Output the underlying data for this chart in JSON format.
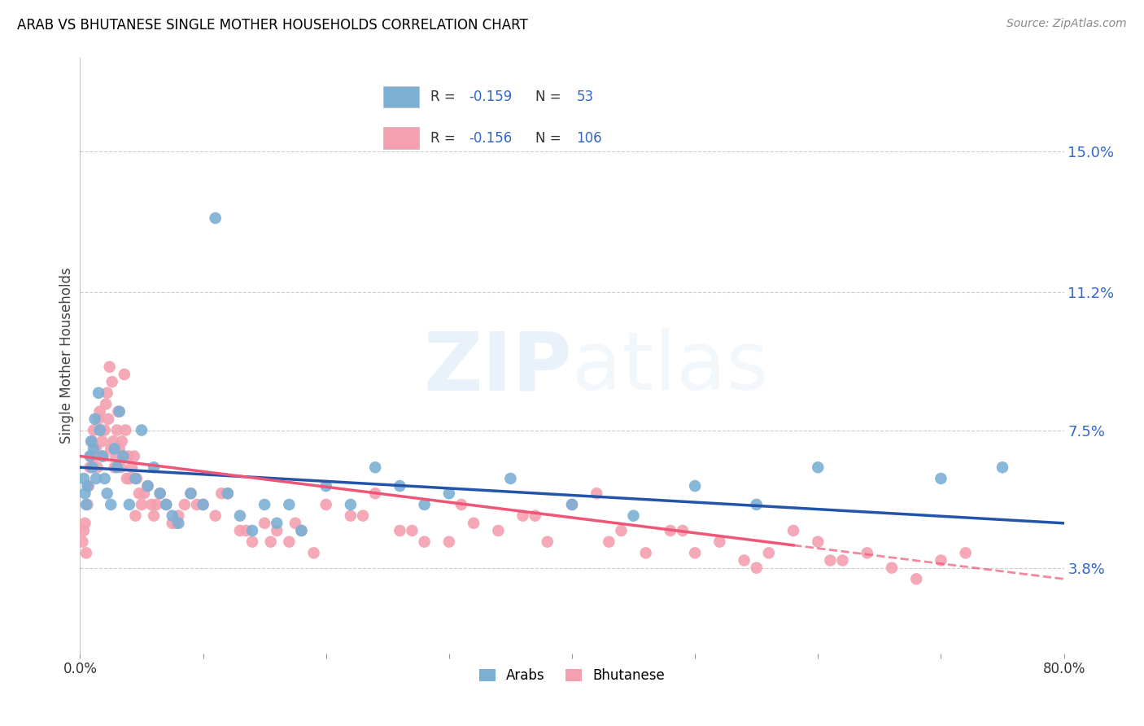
{
  "title": "ARAB VS BHUTANESE SINGLE MOTHER HOUSEHOLDS CORRELATION CHART",
  "source": "Source: ZipAtlas.com",
  "ylabel": "Single Mother Households",
  "ytick_values": [
    3.8,
    7.5,
    11.2,
    15.0
  ],
  "xlim": [
    0.0,
    80.0
  ],
  "ylim": [
    1.5,
    17.5
  ],
  "legend_arab_r": "-0.159",
  "legend_arab_n": "53",
  "legend_bhutanese_r": "-0.156",
  "legend_bhutanese_n": "106",
  "arab_color": "#7BAFD4",
  "bhutanese_color": "#F4A0B0",
  "arab_line_color": "#2255AA",
  "bhutanese_line_color": "#EE5577",
  "arab_line_y0": 6.5,
  "arab_line_y1": 5.0,
  "bhut_line_y0": 6.8,
  "bhut_line_y1": 3.5,
  "bhut_dash_start_x": 58,
  "arab_x": [
    0.3,
    0.4,
    0.5,
    0.6,
    0.8,
    0.9,
    1.0,
    1.1,
    1.2,
    1.3,
    1.5,
    1.6,
    1.8,
    2.0,
    2.2,
    2.5,
    2.8,
    3.0,
    3.2,
    3.5,
    4.0,
    4.5,
    5.0,
    5.5,
    6.0,
    6.5,
    7.0,
    7.5,
    8.0,
    9.0,
    10.0,
    11.0,
    12.0,
    13.0,
    14.0,
    15.0,
    16.0,
    17.0,
    18.0,
    20.0,
    22.0,
    24.0,
    26.0,
    28.0,
    30.0,
    35.0,
    40.0,
    45.0,
    50.0,
    55.0,
    60.0,
    70.0,
    75.0
  ],
  "arab_y": [
    6.2,
    5.8,
    5.5,
    6.0,
    6.8,
    7.2,
    6.5,
    7.0,
    7.8,
    6.2,
    8.5,
    7.5,
    6.8,
    6.2,
    5.8,
    5.5,
    7.0,
    6.5,
    8.0,
    6.8,
    5.5,
    6.2,
    7.5,
    6.0,
    6.5,
    5.8,
    5.5,
    5.2,
    5.0,
    5.8,
    5.5,
    13.2,
    5.8,
    5.2,
    4.8,
    5.5,
    5.0,
    5.5,
    4.8,
    6.0,
    5.5,
    6.5,
    6.0,
    5.5,
    5.8,
    6.2,
    5.5,
    5.2,
    6.0,
    5.5,
    6.5,
    6.2,
    6.5
  ],
  "bhut_x": [
    0.2,
    0.3,
    0.4,
    0.5,
    0.6,
    0.7,
    0.8,
    0.9,
    1.0,
    1.1,
    1.2,
    1.3,
    1.4,
    1.5,
    1.6,
    1.7,
    1.8,
    1.9,
    2.0,
    2.1,
    2.2,
    2.3,
    2.4,
    2.5,
    2.6,
    2.7,
    2.8,
    2.9,
    3.0,
    3.1,
    3.2,
    3.3,
    3.4,
    3.5,
    3.6,
    3.7,
    3.8,
    3.9,
    4.0,
    4.2,
    4.4,
    4.6,
    4.8,
    5.0,
    5.2,
    5.5,
    5.8,
    6.0,
    6.5,
    7.0,
    7.5,
    8.0,
    8.5,
    9.0,
    10.0,
    11.0,
    12.0,
    13.0,
    14.0,
    15.0,
    16.0,
    17.0,
    18.0,
    19.0,
    20.0,
    22.0,
    24.0,
    26.0,
    28.0,
    30.0,
    32.0,
    34.0,
    36.0,
    38.0,
    40.0,
    42.0,
    44.0,
    46.0,
    48.0,
    50.0,
    52.0,
    54.0,
    56.0,
    58.0,
    60.0,
    62.0,
    64.0,
    66.0,
    68.0,
    70.0,
    72.0,
    4.5,
    6.2,
    7.8,
    9.5,
    11.5,
    13.5,
    15.5,
    17.5,
    23.0,
    27.0,
    31.0,
    37.0,
    43.0,
    49.0,
    55.0,
    61.0
  ],
  "bhut_y": [
    4.5,
    4.8,
    5.0,
    4.2,
    5.5,
    6.0,
    6.5,
    6.8,
    7.2,
    7.5,
    6.8,
    7.0,
    6.5,
    7.8,
    8.0,
    7.5,
    7.2,
    6.8,
    7.5,
    8.2,
    8.5,
    7.8,
    9.2,
    7.0,
    8.8,
    7.2,
    6.5,
    6.8,
    7.5,
    8.0,
    7.0,
    6.5,
    7.2,
    6.8,
    9.0,
    7.5,
    6.2,
    6.8,
    6.2,
    6.5,
    6.8,
    6.2,
    5.8,
    5.5,
    5.8,
    6.0,
    5.5,
    5.2,
    5.8,
    5.5,
    5.0,
    5.2,
    5.5,
    5.8,
    5.5,
    5.2,
    5.8,
    4.8,
    4.5,
    5.0,
    4.8,
    4.5,
    4.8,
    4.2,
    5.5,
    5.2,
    5.8,
    4.8,
    4.5,
    4.5,
    5.0,
    4.8,
    5.2,
    4.5,
    5.5,
    5.8,
    4.8,
    4.2,
    4.8,
    4.2,
    4.5,
    4.0,
    4.2,
    4.8,
    4.5,
    4.0,
    4.2,
    3.8,
    3.5,
    4.0,
    4.2,
    5.2,
    5.5,
    5.0,
    5.5,
    5.8,
    4.8,
    4.5,
    5.0,
    5.2,
    4.8,
    5.5,
    5.2,
    4.5,
    4.8,
    3.8,
    4.0
  ]
}
